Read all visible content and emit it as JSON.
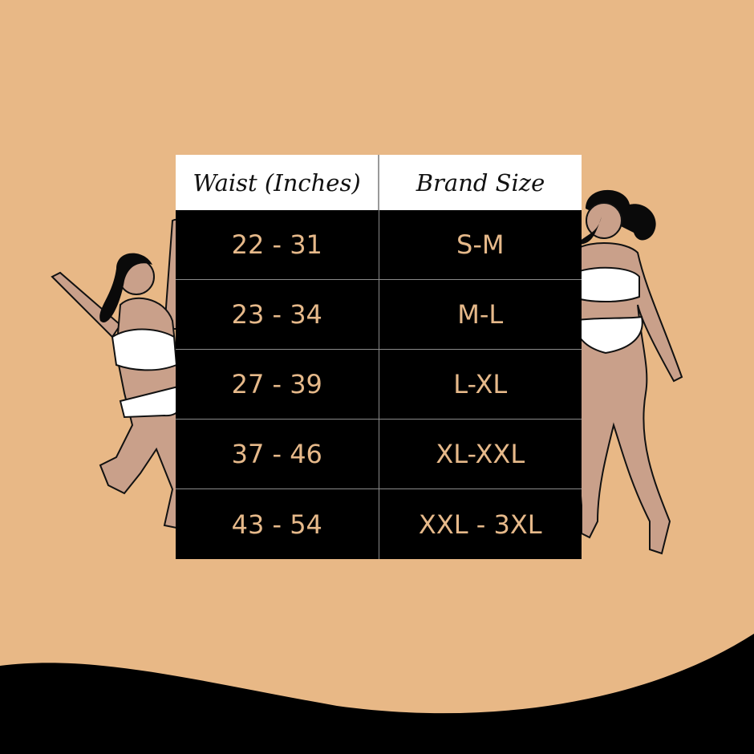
{
  "table": {
    "headers": [
      "Waist (Inches)",
      "Brand Size"
    ],
    "rows": [
      [
        "22 - 31",
        "S-M"
      ],
      [
        "23 - 34",
        "M-L"
      ],
      [
        "27 - 39",
        "L-XL"
      ],
      [
        "37 - 46",
        "XL-XXL"
      ],
      [
        "43 - 54",
        "XXL - 3XL"
      ]
    ]
  },
  "colors": {
    "background": "#e8b886",
    "table_body": "#000000",
    "cell_text": "#e6b98a",
    "header_bg": "#ffffff",
    "skin": "#c9a08a"
  }
}
